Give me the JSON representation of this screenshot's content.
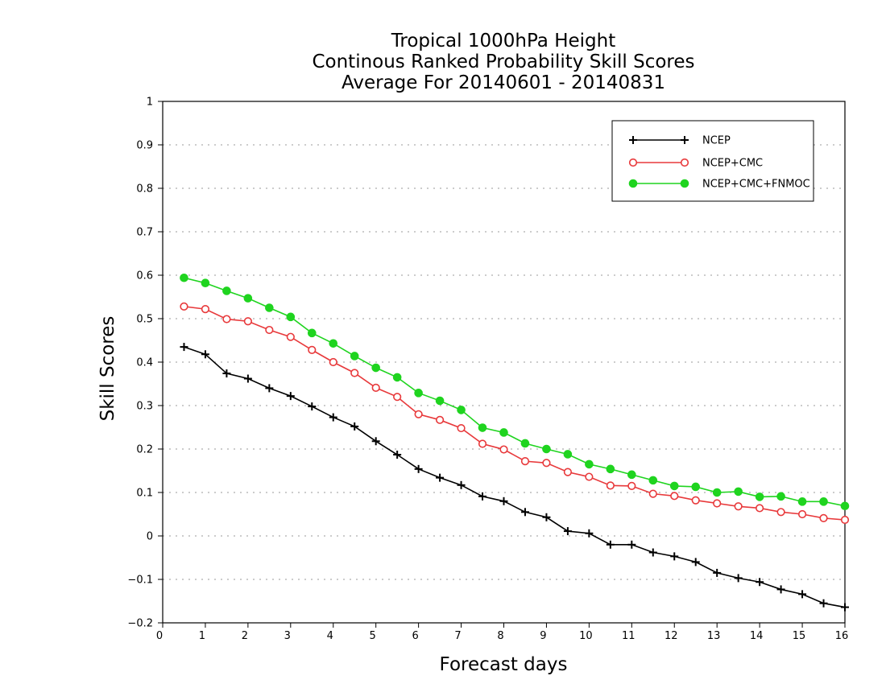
{
  "chart_data": {
    "type": "line",
    "title_lines": [
      "Tropical 1000hPa Height",
      "Continous Ranked Probability Skill Scores",
      "Average For 20140601 - 20140831"
    ],
    "xlabel": "Forecast days",
    "ylabel": "Skill Scores",
    "xlim": [
      0,
      16
    ],
    "ylim": [
      -0.2,
      1
    ],
    "x_ticks": [
      0,
      1,
      2,
      3,
      4,
      5,
      6,
      7,
      8,
      9,
      10,
      11,
      12,
      13,
      14,
      15,
      16
    ],
    "x_tick_labels": [
      "0",
      "1",
      "2",
      "3",
      "4",
      "5",
      "6",
      "7",
      "8",
      "9",
      "10",
      "11",
      "12",
      "13",
      "14",
      "15",
      "16"
    ],
    "y_ticks": [
      -0.2,
      -0.1,
      0,
      0.1,
      0.2,
      0.3,
      0.4,
      0.5,
      0.6,
      0.7,
      0.8,
      0.9,
      1
    ],
    "y_tick_labels": [
      "−0.2",
      "−0.1",
      "0",
      "0.1",
      "0.2",
      "0.3",
      "0.4",
      "0.5",
      "0.6",
      "0.7",
      "0.8",
      "0.9",
      "1"
    ],
    "grid": "horizontal-dotted",
    "legend_position": "top-right",
    "x": [
      0.5,
      1,
      1.5,
      2,
      2.5,
      3,
      3.5,
      4,
      4.5,
      5,
      5.5,
      6,
      6.5,
      7,
      7.5,
      8,
      8.5,
      9,
      9.5,
      10,
      10.5,
      11,
      11.5,
      12,
      12.5,
      13,
      13.5,
      14,
      14.5,
      15,
      15.5,
      16
    ],
    "series": [
      {
        "name": "NCEP",
        "color": "#000000",
        "marker": "plus",
        "values": [
          0.435,
          0.418,
          0.374,
          0.362,
          0.34,
          0.322,
          0.298,
          0.273,
          0.252,
          0.218,
          0.187,
          0.154,
          0.134,
          0.117,
          0.091,
          0.08,
          0.055,
          0.043,
          0.011,
          0.006,
          -0.02,
          -0.02,
          -0.038,
          -0.047,
          -0.06,
          -0.085,
          -0.097,
          -0.106,
          -0.123,
          -0.134,
          -0.155,
          -0.164
        ]
      },
      {
        "name": "NCEP+CMC",
        "color": "#e8393b",
        "marker": "open-circle",
        "values": [
          0.528,
          0.522,
          0.499,
          0.494,
          0.474,
          0.458,
          0.428,
          0.4,
          0.375,
          0.341,
          0.32,
          0.28,
          0.267,
          0.248,
          0.212,
          0.199,
          0.172,
          0.168,
          0.147,
          0.136,
          0.116,
          0.115,
          0.097,
          0.092,
          0.082,
          0.075,
          0.068,
          0.064,
          0.055,
          0.05,
          0.041,
          0.037
        ]
      },
      {
        "name": "NCEP+CMC+FNMOC",
        "color": "#1fd41f",
        "marker": "filled-circle",
        "values": [
          0.594,
          0.582,
          0.564,
          0.547,
          0.525,
          0.504,
          0.467,
          0.443,
          0.414,
          0.387,
          0.365,
          0.329,
          0.311,
          0.29,
          0.249,
          0.238,
          0.213,
          0.2,
          0.188,
          0.165,
          0.154,
          0.141,
          0.128,
          0.115,
          0.113,
          0.1,
          0.102,
          0.09,
          0.091,
          0.079,
          0.079,
          0.069
        ]
      }
    ]
  }
}
